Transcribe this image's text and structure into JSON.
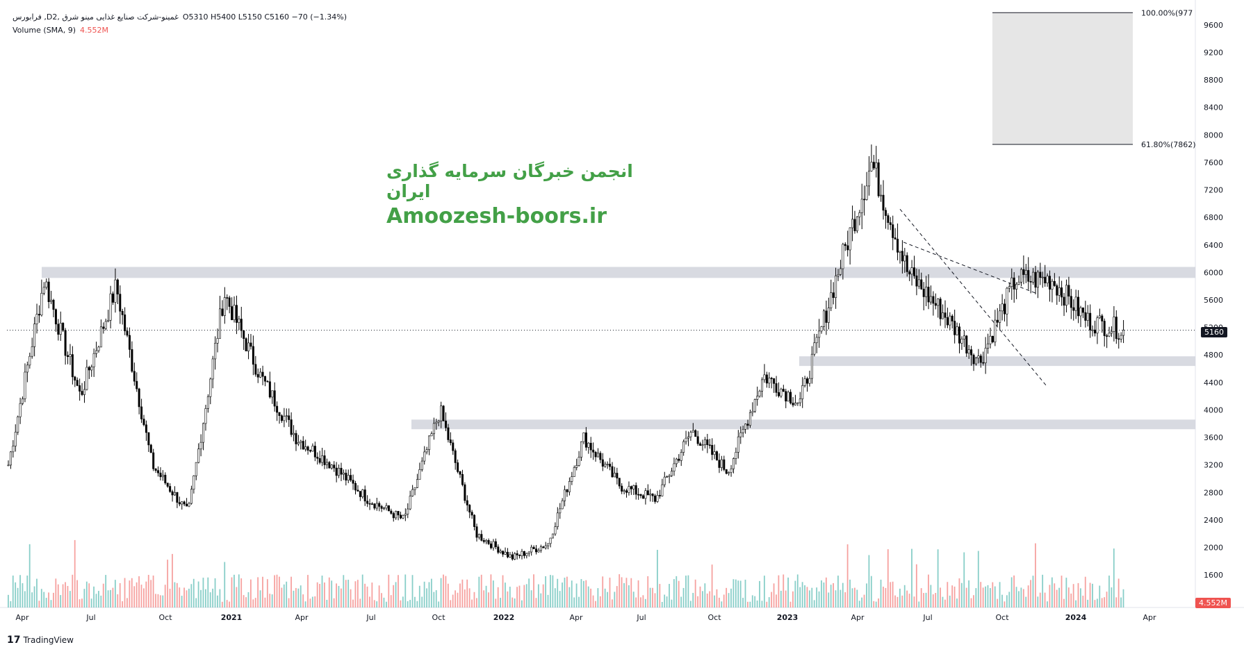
{
  "header": {
    "symbol_line": "فرابورس ,Dغمینو-شرکت صنایع غذایی مینو شرق ,2",
    "ohlc": "O5310  H5400  L5150  C5160  −70 (−1.34%)",
    "volume_label": "Volume (SMA, 9)",
    "volume_value": "4.552M"
  },
  "watermark": {
    "line1": "انجمن خبرگان سرمایه گذاری ایران",
    "line2": "Amoozesh-boors.ir"
  },
  "brand": "TradingView",
  "last_price_tag": "5160",
  "volume_tag": "4.552M",
  "colors": {
    "up": "#26a69a",
    "down": "#ef5350",
    "candle": "#000000",
    "zone": "#d1d4dc",
    "watermark": "#43a047"
  },
  "chart_data": {
    "type": "candlestick",
    "y_axis": {
      "ticks": [
        1600,
        2000,
        2400,
        2800,
        3200,
        3600,
        4000,
        4400,
        4800,
        5200,
        5600,
        6000,
        6400,
        6800,
        7200,
        7600,
        8000,
        8400,
        8800,
        9200,
        9600
      ],
      "range": [
        1380,
        9800
      ],
      "side": "right"
    },
    "x_axis": {
      "labels": [
        "Apr",
        "Jul",
        "Oct",
        "2021",
        "Apr",
        "Jul",
        "Oct",
        "2022",
        "Apr",
        "Jul",
        "Oct",
        "2023",
        "Apr",
        "Jul",
        "Oct",
        "2024",
        "Apr"
      ],
      "bold": [
        "2021",
        "2022",
        "2023",
        "2024"
      ]
    },
    "fib_levels": [
      {
        "label": "100.00%(977",
        "value": 9777
      },
      {
        "label": "61.80%(7862)",
        "value": 7862
      }
    ],
    "zones": [
      {
        "low": 5920,
        "high": 6080
      },
      {
        "low": 4640,
        "high": 4780
      },
      {
        "low": 3720,
        "high": 3860
      }
    ],
    "channel": [
      {
        "from_value": 6920,
        "to_value": 4360
      },
      {
        "from_value": 6440,
        "to_value": 5700
      }
    ],
    "last_close": 5160,
    "anchors": [
      [
        "Apr",
        3200
      ],
      [
        "Apr",
        5900
      ],
      [
        "Apr",
        4200
      ],
      [
        "Jul",
        5800
      ],
      [
        "Jul",
        3200
      ],
      [
        "Oct",
        2500
      ],
      [
        "2021",
        5700
      ],
      [
        "2021",
        4500
      ],
      [
        "Apr",
        3600
      ],
      [
        "Apr",
        3200
      ],
      [
        "Jul",
        2700
      ],
      [
        "Jul",
        2400
      ],
      [
        "Oct",
        4000
      ],
      [
        "Oct",
        2200
      ],
      [
        "2022",
        1850
      ],
      [
        "2022",
        2050
      ],
      [
        "Apr",
        3600
      ],
      [
        "Apr",
        2900
      ],
      [
        "Jul",
        2700
      ],
      [
        "Oct",
        3700
      ],
      [
        "Oct",
        3100
      ],
      [
        "2023",
        4500
      ],
      [
        "2023",
        4100
      ],
      [
        "Apr",
        5900
      ],
      [
        "Apr",
        7600
      ],
      [
        "Jul",
        6000
      ],
      [
        "Jul",
        5400
      ],
      [
        "Oct",
        4700
      ],
      [
        "Oct",
        5900
      ],
      [
        "2024",
        5900
      ],
      [
        "2024",
        5300
      ],
      [
        "2024",
        5160
      ]
    ]
  }
}
